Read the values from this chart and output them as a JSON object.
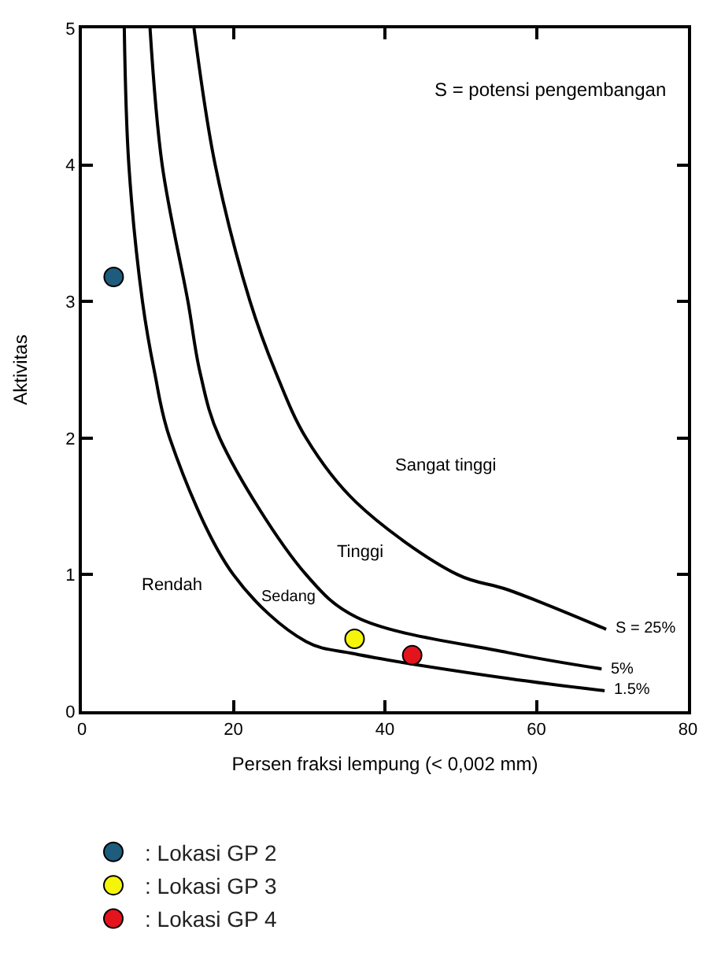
{
  "chart_data": {
    "type": "line",
    "xlabel": "Persen fraksi lempung (< 0,002 mm)",
    "ylabel": "Aktivitas",
    "xlim": [
      0,
      80
    ],
    "ylim": [
      0,
      5
    ],
    "xticks": [
      0,
      20,
      40,
      60,
      80
    ],
    "yticks": [
      0,
      1,
      2,
      3,
      4,
      5
    ],
    "grid": false,
    "legend": "bottom",
    "line_style": "solid",
    "series": [
      {
        "name": "S = 25%",
        "color": "#000000",
        "x": [
          14.8,
          17.6,
          22.2,
          25.6,
          29.6,
          36.2,
          49.6,
          56.2,
          69.2
        ],
        "values": [
          5,
          4,
          3,
          2.48,
          2,
          1.53,
          1,
          0.89,
          0.6
        ]
      },
      {
        "name": "5%",
        "color": "#000000",
        "x": [
          9,
          10.6,
          14,
          15.6,
          18.2,
          29.6,
          36.2,
          56.2,
          68.6
        ],
        "values": [
          5,
          4,
          3,
          2.48,
          2,
          1,
          0.69,
          0.43,
          0.31
        ]
      },
      {
        "name": "1.5%",
        "color": "#000000",
        "x": [
          5.6,
          6.2,
          8,
          9.6,
          11.6,
          20,
          29.6,
          36,
          56.2,
          69
        ],
        "values": [
          5,
          4,
          3,
          2.48,
          2,
          1,
          0.51,
          0.42,
          0.24,
          0.15
        ]
      },
      {
        "type": "scatter",
        "name": ": Lokasi GP 2",
        "color": "#1d5c7c",
        "marker": "circle",
        "x": [
          4.2
        ],
        "values": [
          3.18
        ]
      },
      {
        "type": "scatter",
        "name": ": Lokasi GP 3",
        "color": "#f5f50a",
        "marker": "circle",
        "x": [
          36
        ],
        "values": [
          0.53
        ]
      },
      {
        "type": "scatter",
        "name": ": Lokasi GP 4",
        "color": "#e3141b",
        "marker": "circle",
        "x": [
          43.6
        ],
        "values": [
          0.41
        ]
      }
    ],
    "annotations": [
      "S = potensi pengembangan",
      "Sangat tinggi",
      "Tinggi",
      "Sedang",
      "Rendah"
    ]
  }
}
